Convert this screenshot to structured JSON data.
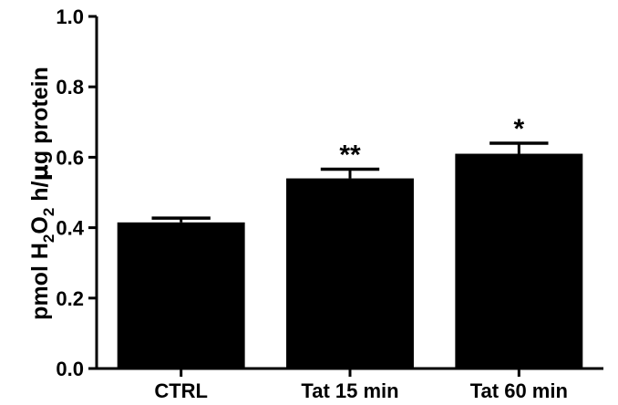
{
  "chart_data": {
    "type": "bar",
    "title": "",
    "xlabel": "",
    "ylabel": {
      "prefix": "pmol H",
      "sub1": "2",
      "mid": "O",
      "sub2": "2",
      "suffix_a": " h/",
      "mu": "μ",
      "suffix_b": "g protein"
    },
    "ylim": [
      0,
      1.0
    ],
    "yticks": [
      "0.0",
      "0.2",
      "0.4",
      "0.6",
      "0.8",
      "1.0"
    ],
    "ytick_values": [
      0,
      0.2,
      0.4,
      0.6,
      0.8,
      1.0
    ],
    "categories": [
      "CTRL",
      "Tat 15 min",
      "Tat 60 min"
    ],
    "values": [
      0.415,
      0.54,
      0.61
    ],
    "errors": [
      0.012,
      0.026,
      0.03
    ],
    "significance": [
      "",
      "**",
      "*"
    ],
    "bar_color": "#000000",
    "grid": false,
    "legend": "none"
  }
}
